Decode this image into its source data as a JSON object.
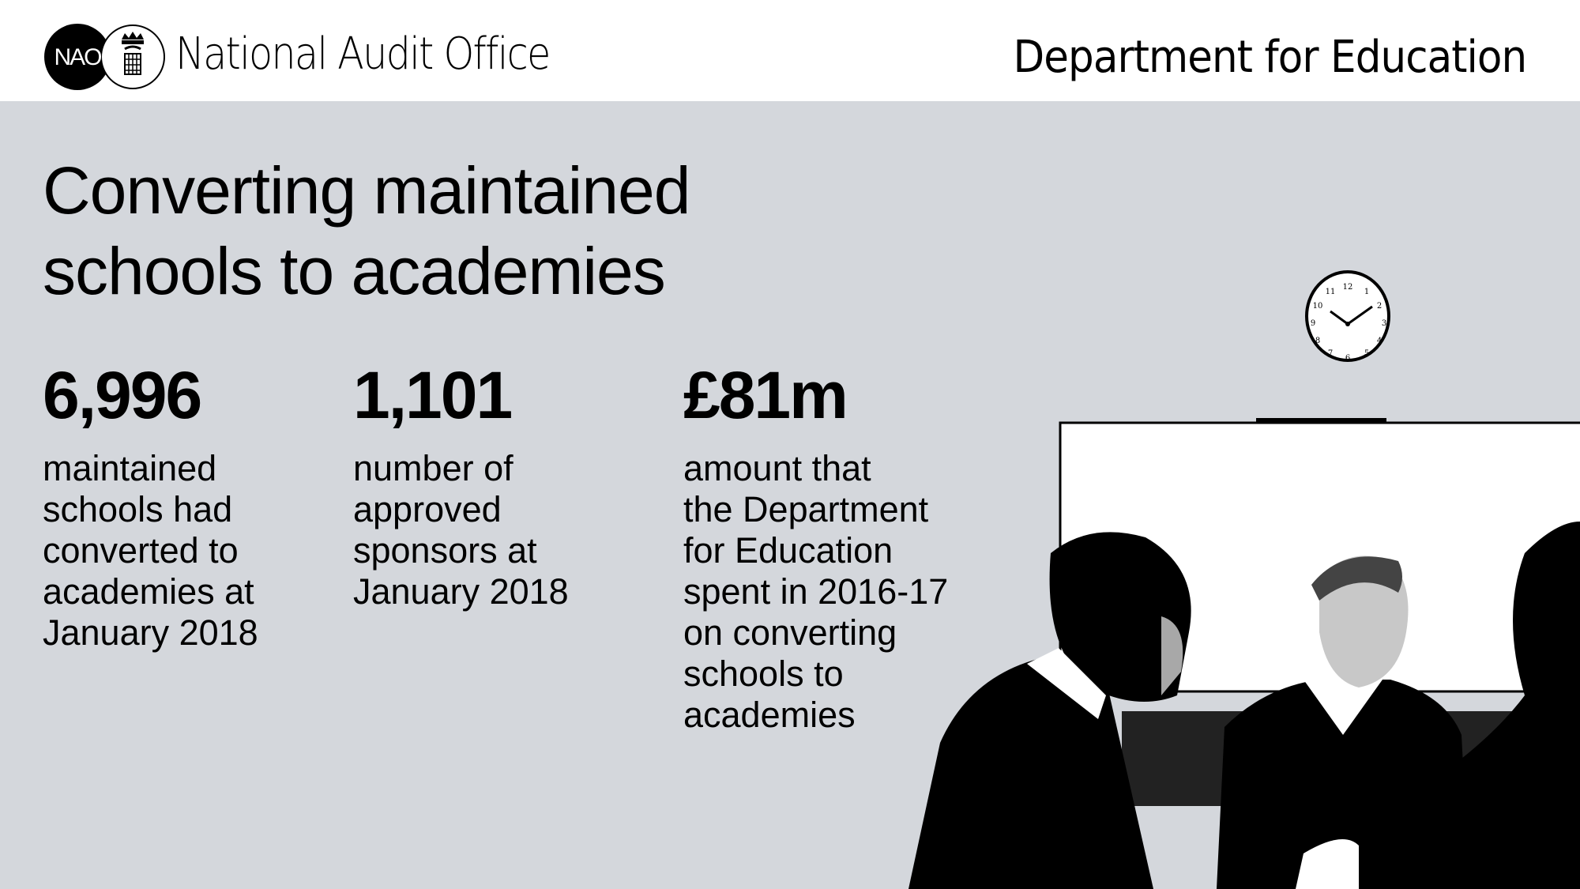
{
  "header": {
    "logo_text": "NAO",
    "org_name": "National Audit Office",
    "department": "Department for Education"
  },
  "title_lines": [
    "Converting maintained",
    "schools to academies"
  ],
  "stats": [
    {
      "value": "6,996",
      "lines": [
        "maintained",
        "schools had",
        "converted to",
        "academies at",
        "January 2018"
      ]
    },
    {
      "value": "1,101",
      "lines": [
        "number of",
        "approved",
        "sponsors at",
        "January 2018"
      ]
    },
    {
      "value": "£81m",
      "lines": [
        "amount that",
        "the Department",
        "for Education",
        "spent in 2016-17",
        "on converting",
        "schools to",
        "academies"
      ]
    }
  ],
  "colors": {
    "background": "#d4d7dc",
    "header": "#ffffff",
    "text": "#000000"
  }
}
